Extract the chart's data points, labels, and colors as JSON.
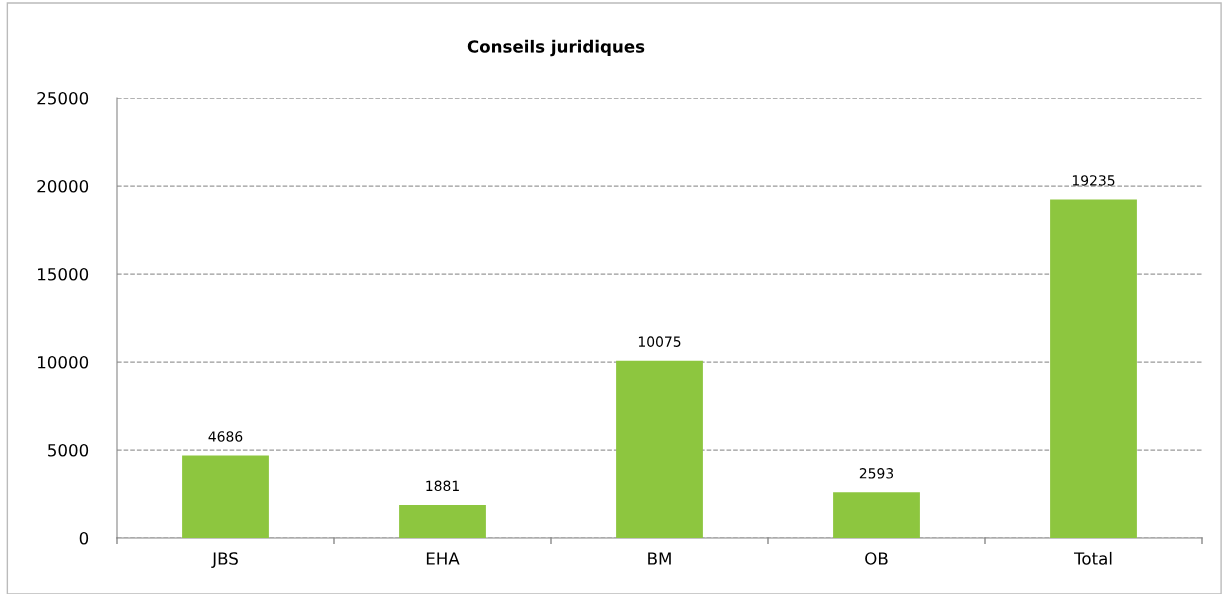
{
  "chart_data": {
    "type": "bar",
    "title": "Conseils juridiques",
    "categories": [
      "JBS",
      "EHA",
      "BM",
      "OB",
      "Total"
    ],
    "values": [
      4686,
      1881,
      10075,
      2593,
      19235
    ],
    "color": "#8dc63f",
    "ylim": [
      0,
      25000
    ],
    "yticks": [
      0,
      5000,
      10000,
      15000,
      20000,
      25000
    ],
    "grid": "y",
    "data_labels": true
  }
}
